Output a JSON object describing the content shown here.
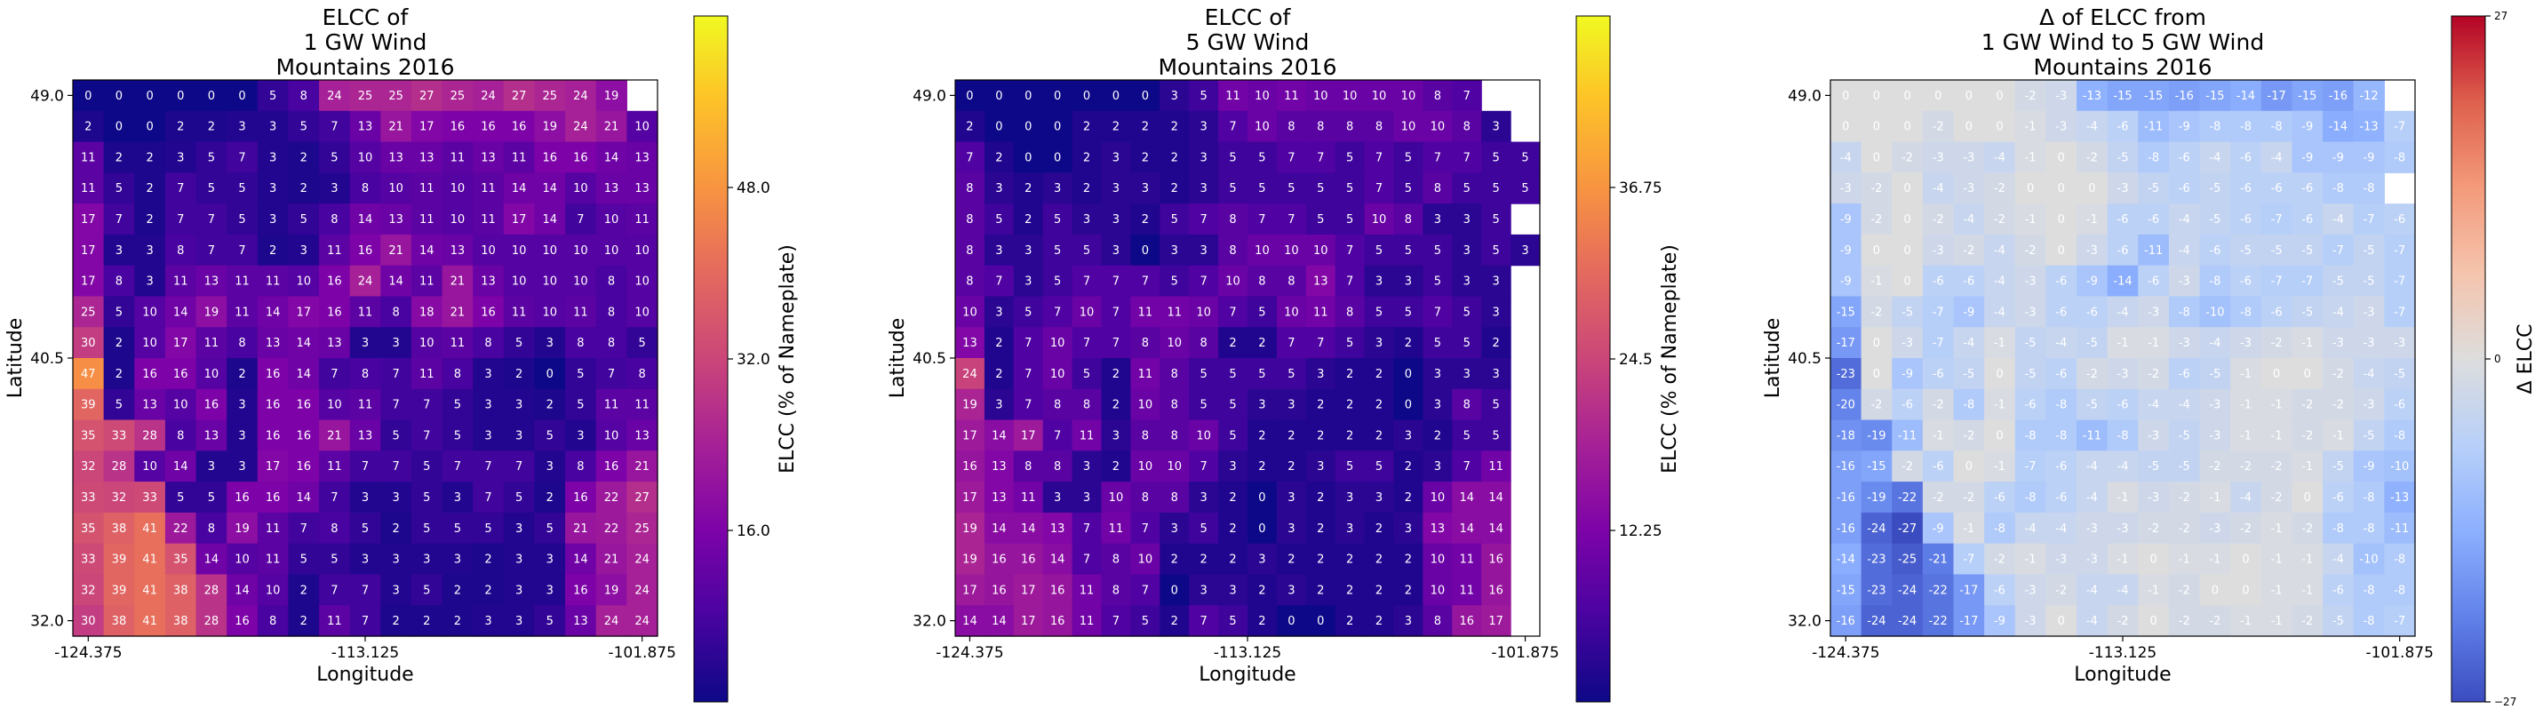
{
  "chart_data": [
    {
      "type": "heatmap",
      "title": [
        "ELCC of",
        "1 GW Wind",
        "Mountains 2016"
      ],
      "xlabel": "Longitude",
      "ylabel": "Latitude",
      "xticks": [
        "-124.375",
        "-113.125",
        "-101.875"
      ],
      "yticks": [
        "49.0",
        "40.5",
        "32.0"
      ],
      "colorbar": {
        "label": "ELCC (% of Nameplate)",
        "ticks": [
          "16.0",
          "32.0",
          "48.0"
        ],
        "tick_values": [
          16,
          32,
          48
        ],
        "range": [
          0,
          64
        ],
        "colormap": "plasma"
      },
      "cells": [
        [
          0,
          0,
          0,
          0,
          0,
          0,
          5,
          8,
          24,
          25,
          25,
          27,
          25,
          24,
          27,
          25,
          24,
          19
        ],
        [
          2,
          0,
          0,
          2,
          2,
          3,
          3,
          5,
          7,
          13,
          21,
          17,
          16,
          16,
          16,
          19,
          24,
          21,
          10
        ],
        [
          11,
          2,
          2,
          3,
          5,
          7,
          3,
          2,
          5,
          10,
          13,
          13,
          11,
          13,
          11,
          16,
          16,
          14,
          13
        ],
        [
          11,
          5,
          2,
          7,
          5,
          5,
          3,
          2,
          3,
          8,
          10,
          11,
          10,
          11,
          14,
          14,
          10,
          13,
          13
        ],
        [
          17,
          7,
          2,
          7,
          7,
          5,
          3,
          5,
          8,
          14,
          13,
          11,
          10,
          11,
          17,
          14,
          7,
          10,
          11
        ],
        [
          17,
          3,
          3,
          8,
          7,
          7,
          2,
          3,
          11,
          16,
          21,
          14,
          13,
          10,
          10,
          10,
          10,
          10,
          10
        ],
        [
          17,
          8,
          3,
          11,
          13,
          11,
          11,
          10,
          16,
          24,
          14,
          11,
          21,
          13,
          10,
          10,
          10,
          8,
          10
        ],
        [
          25,
          5,
          10,
          14,
          19,
          11,
          14,
          17,
          16,
          11,
          8,
          18,
          21,
          16,
          11,
          10,
          11,
          8,
          10
        ],
        [
          30,
          2,
          10,
          17,
          11,
          8,
          13,
          14,
          13,
          3,
          3,
          10,
          11,
          8,
          5,
          3,
          8,
          8,
          5
        ],
        [
          47,
          2,
          16,
          16,
          10,
          2,
          16,
          14,
          7,
          8,
          7,
          11,
          8,
          3,
          2,
          0,
          5,
          7,
          8
        ],
        [
          39,
          5,
          13,
          10,
          16,
          3,
          16,
          16,
          10,
          11,
          7,
          7,
          5,
          3,
          3,
          2,
          5,
          11,
          11
        ],
        [
          35,
          33,
          28,
          8,
          13,
          3,
          16,
          16,
          21,
          13,
          5,
          7,
          5,
          3,
          3,
          5,
          3,
          10,
          13
        ],
        [
          32,
          28,
          10,
          14,
          3,
          3,
          17,
          16,
          11,
          7,
          7,
          5,
          7,
          7,
          7,
          3,
          8,
          16,
          21
        ],
        [
          33,
          32,
          33,
          5,
          5,
          16,
          16,
          14,
          7,
          3,
          3,
          5,
          3,
          7,
          5,
          2,
          16,
          22,
          27
        ],
        [
          35,
          38,
          41,
          22,
          8,
          19,
          11,
          7,
          8,
          5,
          2,
          5,
          5,
          5,
          3,
          5,
          21,
          22,
          25
        ],
        [
          33,
          39,
          41,
          35,
          14,
          10,
          11,
          5,
          5,
          3,
          3,
          3,
          3,
          2,
          3,
          3,
          14,
          21,
          24
        ],
        [
          32,
          39,
          41,
          38,
          28,
          14,
          10,
          2,
          7,
          7,
          3,
          5,
          2,
          2,
          3,
          3,
          16,
          19,
          24
        ],
        [
          30,
          38,
          41,
          38,
          28,
          16,
          8,
          2,
          11,
          7,
          2,
          2,
          2,
          3,
          3,
          5,
          13,
          24,
          24
        ]
      ]
    },
    {
      "type": "heatmap",
      "title": [
        "ELCC of",
        "5 GW Wind",
        "Mountains 2016"
      ],
      "xlabel": "Longitude",
      "ylabel": "Latitude",
      "xticks": [
        "-124.375",
        "-113.125",
        "-101.875"
      ],
      "yticks": [
        "49.0",
        "40.5",
        "32.0"
      ],
      "colorbar": {
        "label": "ELCC (% of Nameplate)",
        "ticks": [
          "12.25",
          "24.5",
          "36.75"
        ],
        "tick_values": [
          12.25,
          24.5,
          36.75
        ],
        "range": [
          0,
          49
        ],
        "colormap": "plasma"
      },
      "cells": [
        [
          0,
          0,
          0,
          0,
          0,
          0,
          0,
          3,
          5,
          11,
          10,
          11,
          10,
          10,
          10,
          10,
          8,
          7
        ],
        [
          2,
          0,
          0,
          0,
          2,
          2,
          2,
          2,
          3,
          7,
          10,
          8,
          8,
          8,
          8,
          10,
          10,
          8,
          3
        ],
        [
          7,
          2,
          0,
          0,
          2,
          3,
          2,
          2,
          3,
          5,
          5,
          7,
          7,
          5,
          7,
          5,
          7,
          7,
          5,
          5
        ],
        [
          8,
          3,
          2,
          3,
          2,
          3,
          3,
          2,
          3,
          5,
          5,
          5,
          5,
          5,
          7,
          5,
          8,
          5,
          5,
          5
        ],
        [
          8,
          5,
          2,
          5,
          3,
          3,
          2,
          5,
          7,
          8,
          7,
          7,
          5,
          5,
          10,
          8,
          3,
          3,
          5
        ],
        [
          8,
          3,
          3,
          5,
          5,
          3,
          0,
          3,
          3,
          8,
          10,
          10,
          10,
          7,
          5,
          5,
          5,
          3,
          5,
          3
        ],
        [
          8,
          7,
          3,
          5,
          7,
          7,
          7,
          5,
          7,
          10,
          8,
          8,
          13,
          7,
          3,
          3,
          5,
          3,
          3
        ],
        [
          10,
          3,
          5,
          7,
          10,
          7,
          11,
          11,
          10,
          7,
          5,
          10,
          11,
          8,
          5,
          5,
          7,
          5,
          3
        ],
        [
          13,
          2,
          7,
          10,
          7,
          7,
          8,
          10,
          8,
          2,
          2,
          7,
          7,
          5,
          3,
          2,
          5,
          5,
          2
        ],
        [
          24,
          2,
          7,
          10,
          5,
          2,
          11,
          8,
          5,
          5,
          5,
          5,
          3,
          2,
          2,
          0,
          3,
          3,
          3
        ],
        [
          19,
          3,
          7,
          8,
          8,
          2,
          10,
          8,
          5,
          5,
          3,
          3,
          2,
          2,
          2,
          0,
          3,
          8,
          5
        ],
        [
          17,
          14,
          17,
          7,
          11,
          3,
          8,
          8,
          10,
          5,
          2,
          2,
          2,
          2,
          2,
          3,
          2,
          5,
          5
        ],
        [
          16,
          13,
          8,
          8,
          3,
          2,
          10,
          10,
          7,
          3,
          2,
          2,
          3,
          5,
          5,
          2,
          3,
          7,
          11
        ],
        [
          17,
          13,
          11,
          3,
          3,
          10,
          8,
          8,
          3,
          2,
          0,
          3,
          2,
          3,
          3,
          2,
          10,
          14,
          14
        ],
        [
          19,
          14,
          14,
          13,
          7,
          11,
          7,
          3,
          5,
          2,
          0,
          3,
          2,
          3,
          2,
          3,
          13,
          14,
          14
        ],
        [
          19,
          16,
          16,
          14,
          7,
          8,
          10,
          2,
          2,
          2,
          3,
          2,
          2,
          2,
          2,
          2,
          10,
          11,
          16
        ],
        [
          17,
          16,
          17,
          16,
          11,
          8,
          7,
          0,
          3,
          3,
          2,
          3,
          2,
          2,
          2,
          2,
          10,
          11,
          16
        ],
        [
          14,
          14,
          17,
          16,
          11,
          7,
          5,
          2,
          7,
          5,
          2,
          0,
          0,
          2,
          2,
          3,
          8,
          16,
          17
        ]
      ]
    },
    {
      "type": "heatmap",
      "title": [
        "Δ of ELCC from",
        "1 GW Wind to 5 GW Wind",
        "Mountains 2016"
      ],
      "xlabel": "Longitude",
      "ylabel": "Latitude",
      "xticks": [
        "-124.375",
        "-113.125",
        "-101.875"
      ],
      "yticks": [
        "49.0",
        "40.5",
        "32.0"
      ],
      "colorbar": {
        "label": "Δ ELCC",
        "ticks": [
          "−27",
          "0",
          "27"
        ],
        "tick_values": [
          -27,
          0,
          27
        ],
        "range": [
          -27,
          27
        ],
        "colormap": "coolwarm"
      },
      "cells": [
        [
          0,
          0,
          0,
          0,
          0,
          0,
          -2,
          -3,
          -13,
          -15,
          -15,
          -16,
          -15,
          -14,
          -17,
          -15,
          -16,
          -12
        ],
        [
          0,
          0,
          0,
          -2,
          0,
          0,
          -1,
          -3,
          -4,
          -6,
          -11,
          -9,
          -8,
          -8,
          -8,
          -9,
          -14,
          -13,
          -7
        ],
        [
          -4,
          0,
          -2,
          -3,
          -3,
          -4,
          -1,
          0,
          -2,
          -5,
          -8,
          -6,
          -4,
          -6,
          -4,
          -9,
          -9,
          -9,
          -8
        ],
        [
          -3,
          -2,
          0,
          -4,
          -3,
          -2,
          0,
          0,
          0,
          -3,
          -5,
          -6,
          -5,
          -6,
          -6,
          -6,
          -8,
          -8
        ],
        [
          -9,
          -2,
          0,
          -2,
          -4,
          -2,
          -1,
          0,
          -1,
          -6,
          -6,
          -4,
          -5,
          -6,
          -7,
          -6,
          -4,
          -7,
          -6
        ],
        [
          -9,
          0,
          0,
          -3,
          -2,
          -4,
          -2,
          0,
          -3,
          -6,
          -11,
          -4,
          -6,
          -5,
          -5,
          -5,
          -7,
          -5,
          -7
        ],
        [
          -9,
          -1,
          0,
          -6,
          -6,
          -4,
          -3,
          -6,
          -9,
          -14,
          -6,
          -3,
          -8,
          -6,
          -7,
          -7,
          -5,
          -5,
          -7
        ],
        [
          -15,
          -2,
          -5,
          -7,
          -9,
          -4,
          -3,
          -6,
          -6,
          -4,
          -3,
          -8,
          -10,
          -8,
          -6,
          -5,
          -4,
          -3,
          -7
        ],
        [
          -17,
          0,
          -3,
          -7,
          -4,
          -1,
          -5,
          -4,
          -5,
          -1,
          -1,
          -3,
          -4,
          -3,
          -2,
          -1,
          -3,
          -3,
          -3
        ],
        [
          -23,
          0,
          -9,
          -6,
          -5,
          0,
          -5,
          -6,
          -2,
          -3,
          -2,
          -6,
          -5,
          -1,
          0,
          0,
          -2,
          -4,
          -5
        ],
        [
          -20,
          -2,
          -6,
          -2,
          -8,
          -1,
          -6,
          -8,
          -5,
          -6,
          -4,
          -4,
          -3,
          -1,
          -1,
          -2,
          -2,
          -3,
          -6
        ],
        [
          -18,
          -19,
          -11,
          -1,
          -2,
          0,
          -8,
          -8,
          -11,
          -8,
          -3,
          -5,
          -3,
          -1,
          -1,
          -2,
          -1,
          -5,
          -8
        ],
        [
          -16,
          -15,
          -2,
          -6,
          0,
          -1,
          -7,
          -6,
          -4,
          -4,
          -5,
          -5,
          -2,
          -2,
          -2,
          -1,
          -5,
          -9,
          -10
        ],
        [
          -16,
          -19,
          -22,
          -2,
          -2,
          -6,
          -8,
          -6,
          -4,
          -1,
          -3,
          -2,
          -1,
          -4,
          -2,
          0,
          -6,
          -8,
          -13
        ],
        [
          -16,
          -24,
          -27,
          -9,
          -1,
          -8,
          -4,
          -4,
          -3,
          -3,
          -2,
          -2,
          -3,
          -2,
          -1,
          -2,
          -8,
          -8,
          -11
        ],
        [
          -14,
          -23,
          -25,
          -21,
          -7,
          -2,
          -1,
          -3,
          -3,
          -1,
          0,
          -1,
          -1,
          0,
          -1,
          -1,
          -4,
          -10,
          -8
        ],
        [
          -15,
          -23,
          -24,
          -22,
          -17,
          -6,
          -3,
          -2,
          -4,
          -4,
          -1,
          -2,
          0,
          0,
          -1,
          -1,
          -6,
          -8,
          -8
        ],
        [
          -16,
          -24,
          -24,
          -22,
          -17,
          -9,
          -3,
          0,
          -4,
          -2,
          0,
          -2,
          -2,
          -1,
          -1,
          -2,
          -5,
          -8,
          -7
        ]
      ]
    }
  ]
}
